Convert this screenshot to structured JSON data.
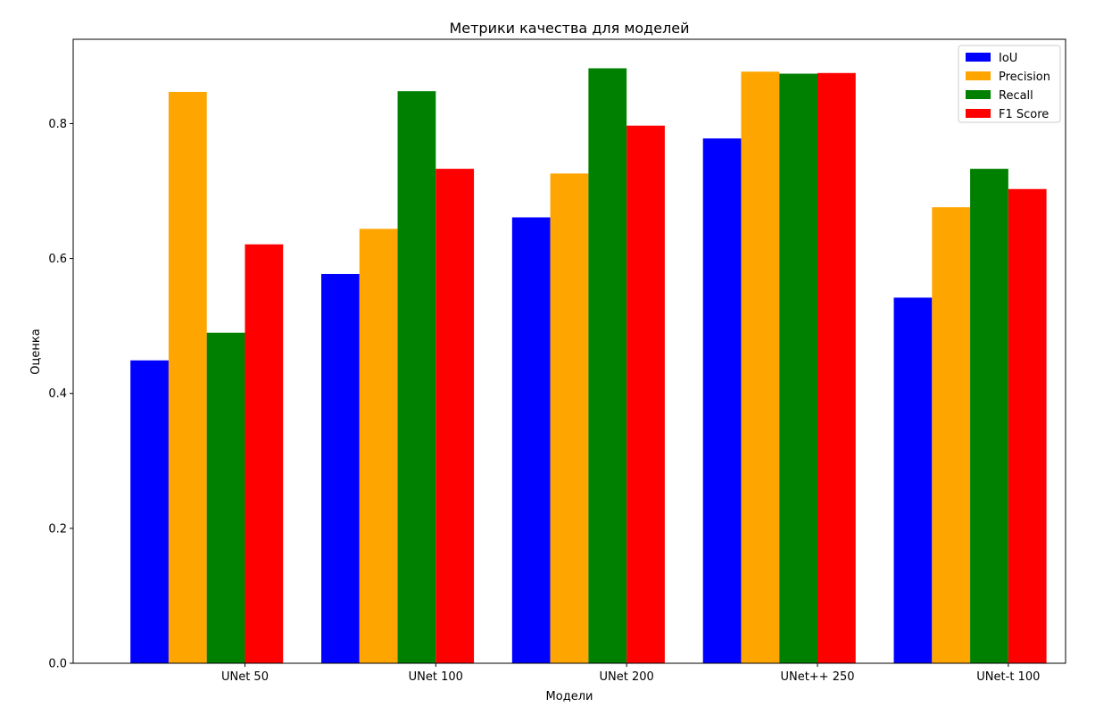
{
  "chart_data": {
    "type": "bar",
    "title": "Метрики качества для моделей",
    "xlabel": "Модели",
    "ylabel": "Оценка",
    "ylim": [
      0,
      0.925
    ],
    "yticks": [
      "0.0",
      "0.2",
      "0.4",
      "0.6",
      "0.8"
    ],
    "grid": false,
    "legend_position": "top-right",
    "categories": [
      "UNet 50",
      "UNet 100",
      "UNet 200",
      "UNet++ 250",
      "UNet-t 100"
    ],
    "series": [
      {
        "name": "IoU",
        "color": "#0000ff",
        "values": [
          0.449,
          0.577,
          0.661,
          0.778,
          0.542
        ]
      },
      {
        "name": "Precision",
        "color": "#ffa500",
        "values": [
          0.847,
          0.644,
          0.726,
          0.877,
          0.676
        ]
      },
      {
        "name": "Recall",
        "color": "#008000",
        "values": [
          0.49,
          0.848,
          0.882,
          0.874,
          0.733
        ]
      },
      {
        "name": "F1 Score",
        "color": "#ff0000",
        "values": [
          0.621,
          0.733,
          0.797,
          0.875,
          0.703
        ]
      }
    ]
  }
}
